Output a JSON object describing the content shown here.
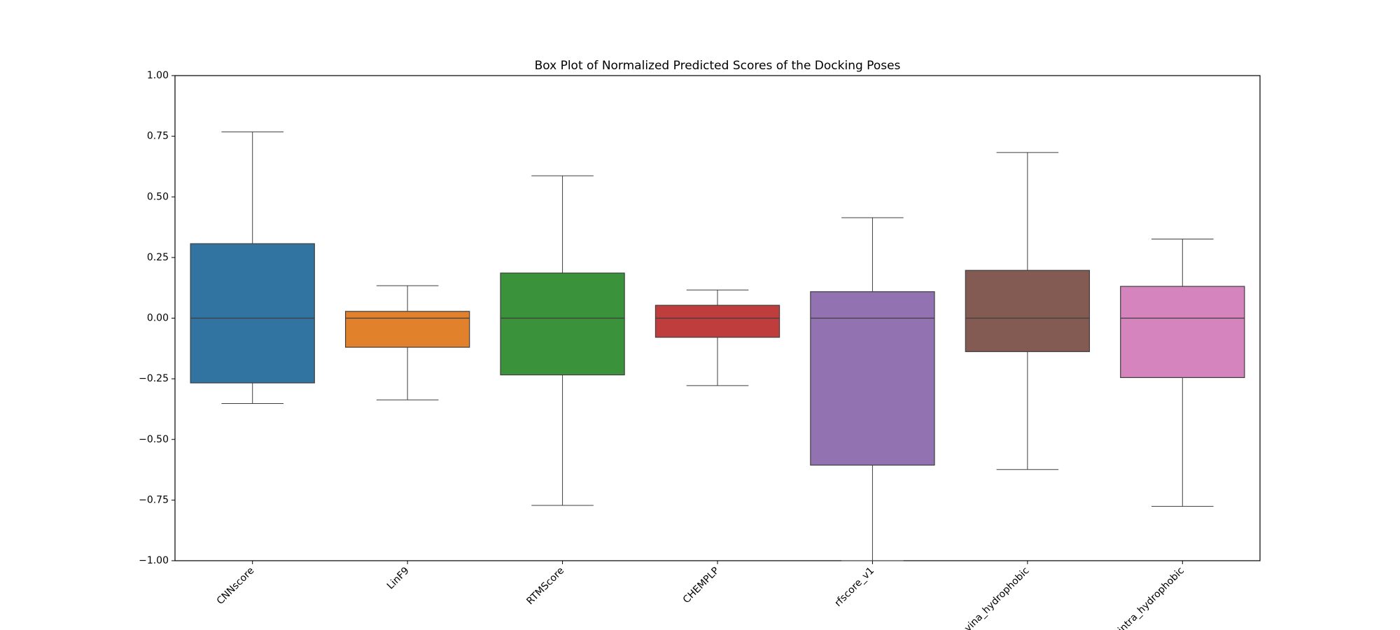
{
  "chart_data": {
    "type": "box",
    "title": "Box Plot of Normalized Predicted Scores of the Docking Poses",
    "categories": [
      "CNNscore",
      "LinF9",
      "RTMScore",
      "CHEMPLP",
      "rfscore_v1",
      "vina_hydrophobic",
      "intra_hydrophobic"
    ],
    "colors": [
      "#3274a1",
      "#e1812c",
      "#3a923a",
      "#c03d3e",
      "#9372b2",
      "#845b53",
      "#d684bd"
    ],
    "min": [
      -0.352,
      -0.337,
      -0.772,
      -0.278,
      -1.0,
      -0.624,
      -0.776
    ],
    "q1": [
      -0.267,
      -0.12,
      -0.234,
      -0.079,
      -0.606,
      -0.138,
      -0.245
    ],
    "median": [
      0,
      0,
      0,
      0,
      0,
      0,
      0
    ],
    "q3": [
      0.307,
      0.028,
      0.186,
      0.053,
      0.109,
      0.197,
      0.131
    ],
    "max": [
      0.768,
      0.134,
      0.587,
      0.116,
      0.414,
      0.683,
      0.326
    ],
    "ylim": [
      -1,
      1
    ],
    "yticks": [
      {
        "value": -1,
        "label": "−1.00"
      },
      {
        "value": -0.75,
        "label": "−0.75"
      },
      {
        "value": -0.5,
        "label": "−0.50"
      },
      {
        "value": -0.25,
        "label": "−0.25"
      },
      {
        "value": 0,
        "label": "0.00"
      },
      {
        "value": 0.25,
        "label": "0.25"
      },
      {
        "value": 0.5,
        "label": "0.50"
      },
      {
        "value": 0.75,
        "label": "0.75"
      },
      {
        "value": 1,
        "label": "1.00"
      }
    ]
  }
}
